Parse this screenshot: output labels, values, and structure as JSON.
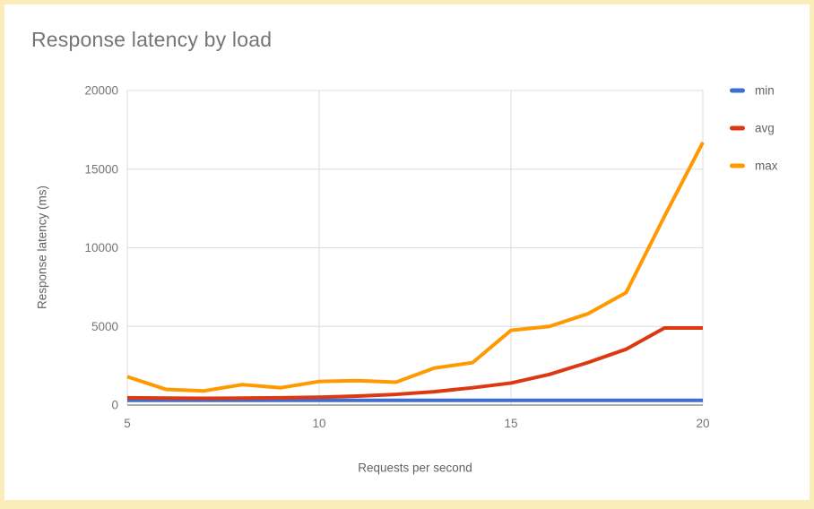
{
  "chart_data": {
    "type": "line",
    "title": "Response latency by load",
    "xlabel": "Requests per second",
    "ylabel": "Response latency (ms)",
    "x": [
      5,
      6,
      7,
      8,
      9,
      10,
      11,
      12,
      13,
      14,
      15,
      16,
      17,
      18,
      19,
      20
    ],
    "series": [
      {
        "name": "min",
        "color": "#3B6FD6",
        "values": [
          300,
          300,
          300,
          300,
          300,
          300,
          300,
          300,
          300,
          300,
          300,
          300,
          300,
          300,
          300,
          300
        ]
      },
      {
        "name": "avg",
        "color": "#DC3912",
        "values": [
          460,
          440,
          430,
          440,
          460,
          500,
          570,
          680,
          850,
          1100,
          1400,
          1950,
          2700,
          3550,
          4900,
          4900
        ]
      },
      {
        "name": "max",
        "color": "#FF9900",
        "values": [
          1800,
          1000,
          900,
          1300,
          1100,
          1500,
          1550,
          1450,
          2350,
          2700,
          4750,
          5000,
          5800,
          7150,
          12000,
          16700
        ]
      }
    ],
    "xlim": [
      5,
      20
    ],
    "ylim": [
      0,
      20000
    ],
    "x_ticks": [
      5,
      10,
      15,
      20
    ],
    "y_ticks": [
      0,
      5000,
      10000,
      15000,
      20000
    ],
    "grid": true,
    "legend_position": "right"
  },
  "style": {
    "grid_color": "#DADCE0",
    "baseline_color": "#616161",
    "tick_text_color": "#757575",
    "axis_title_color": "#616161",
    "legend_text_color": "#5F6368",
    "title_color": "#757575",
    "border_color": "#FAEDB9",
    "background": "#FFFFFF",
    "line_width": 4
  }
}
